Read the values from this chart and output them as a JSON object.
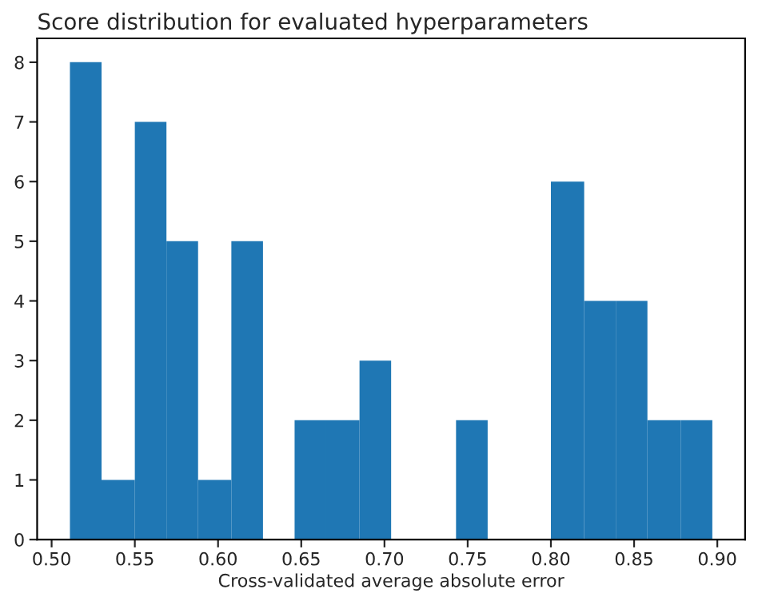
{
  "chart_data": {
    "type": "histogram",
    "title": "Score distribution for evaluated hyperparameters",
    "xlabel": "Cross-validated average absolute error",
    "bins": [
      0.511,
      0.53,
      0.55,
      0.569,
      0.588,
      0.608,
      0.627,
      0.646,
      0.665,
      0.685,
      0.704,
      0.743,
      0.762,
      0.8,
      0.82,
      0.839,
      0.858,
      0.878,
      0.897
    ],
    "values": [
      8,
      1,
      7,
      5,
      1,
      5,
      0,
      2,
      2,
      3,
      0,
      2,
      0,
      6,
      4,
      4,
      2,
      2
    ],
    "color": "#1f77b4",
    "xlim": [
      0.4913,
      0.9167
    ],
    "xticks": [
      {
        "value": 0.5,
        "label": "0.50"
      },
      {
        "value": 0.55,
        "label": "0.55"
      },
      {
        "value": 0.6,
        "label": "0.60"
      },
      {
        "value": 0.65,
        "label": "0.65"
      },
      {
        "value": 0.7,
        "label": "0.70"
      },
      {
        "value": 0.75,
        "label": "0.75"
      },
      {
        "value": 0.8,
        "label": "0.80"
      },
      {
        "value": 0.85,
        "label": "0.85"
      },
      {
        "value": 0.9,
        "label": "0.90"
      }
    ],
    "ylim": [
      0,
      8.4
    ],
    "yticks": [
      0,
      1,
      2,
      3,
      4,
      5,
      6,
      7,
      8
    ]
  }
}
